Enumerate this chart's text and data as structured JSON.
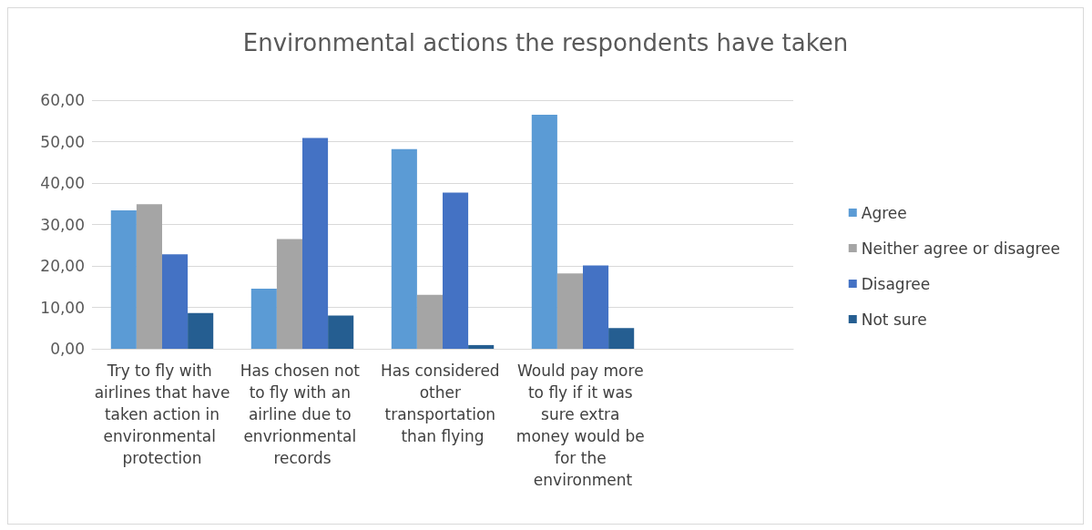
{
  "chart_data": {
    "type": "bar",
    "title": "Environmental actions the respondents have taken",
    "categories": [
      "Try to fly with airlines that have taken action in environmental protection",
      "Has chosen not to fly with an airline due to envrionmental records",
      "Has considered other transportation than flying",
      "Would pay more to fly if it was sure extra money would be for the environment",
      null
    ],
    "series": [
      {
        "name": "Agree",
        "color": "#5b9bd5",
        "values": [
          33.4,
          14.5,
          48.2,
          56.5,
          null
        ]
      },
      {
        "name": "Neither agree or disagree",
        "color": "#a5a5a5",
        "values": [
          34.9,
          26.5,
          13.0,
          18.2,
          null
        ]
      },
      {
        "name": "Disagree",
        "color": "#4472c4",
        "values": [
          22.8,
          50.9,
          37.7,
          20.1,
          null
        ]
      },
      {
        "name": "Not sure",
        "color": "#255e91",
        "values": [
          8.6,
          8.0,
          0.9,
          5.0,
          null
        ]
      }
    ],
    "ylim": [
      0,
      60
    ],
    "yticks": [
      {
        "value": 0,
        "label": "0,00"
      },
      {
        "value": 10,
        "label": "10,00"
      },
      {
        "value": 20,
        "label": "20,00"
      },
      {
        "value": 30,
        "label": "30,00"
      },
      {
        "value": 40,
        "label": "40,00"
      },
      {
        "value": 50,
        "label": "50,00"
      },
      {
        "value": 60,
        "label": "60,00"
      }
    ],
    "grid": "y",
    "legend": "right"
  }
}
